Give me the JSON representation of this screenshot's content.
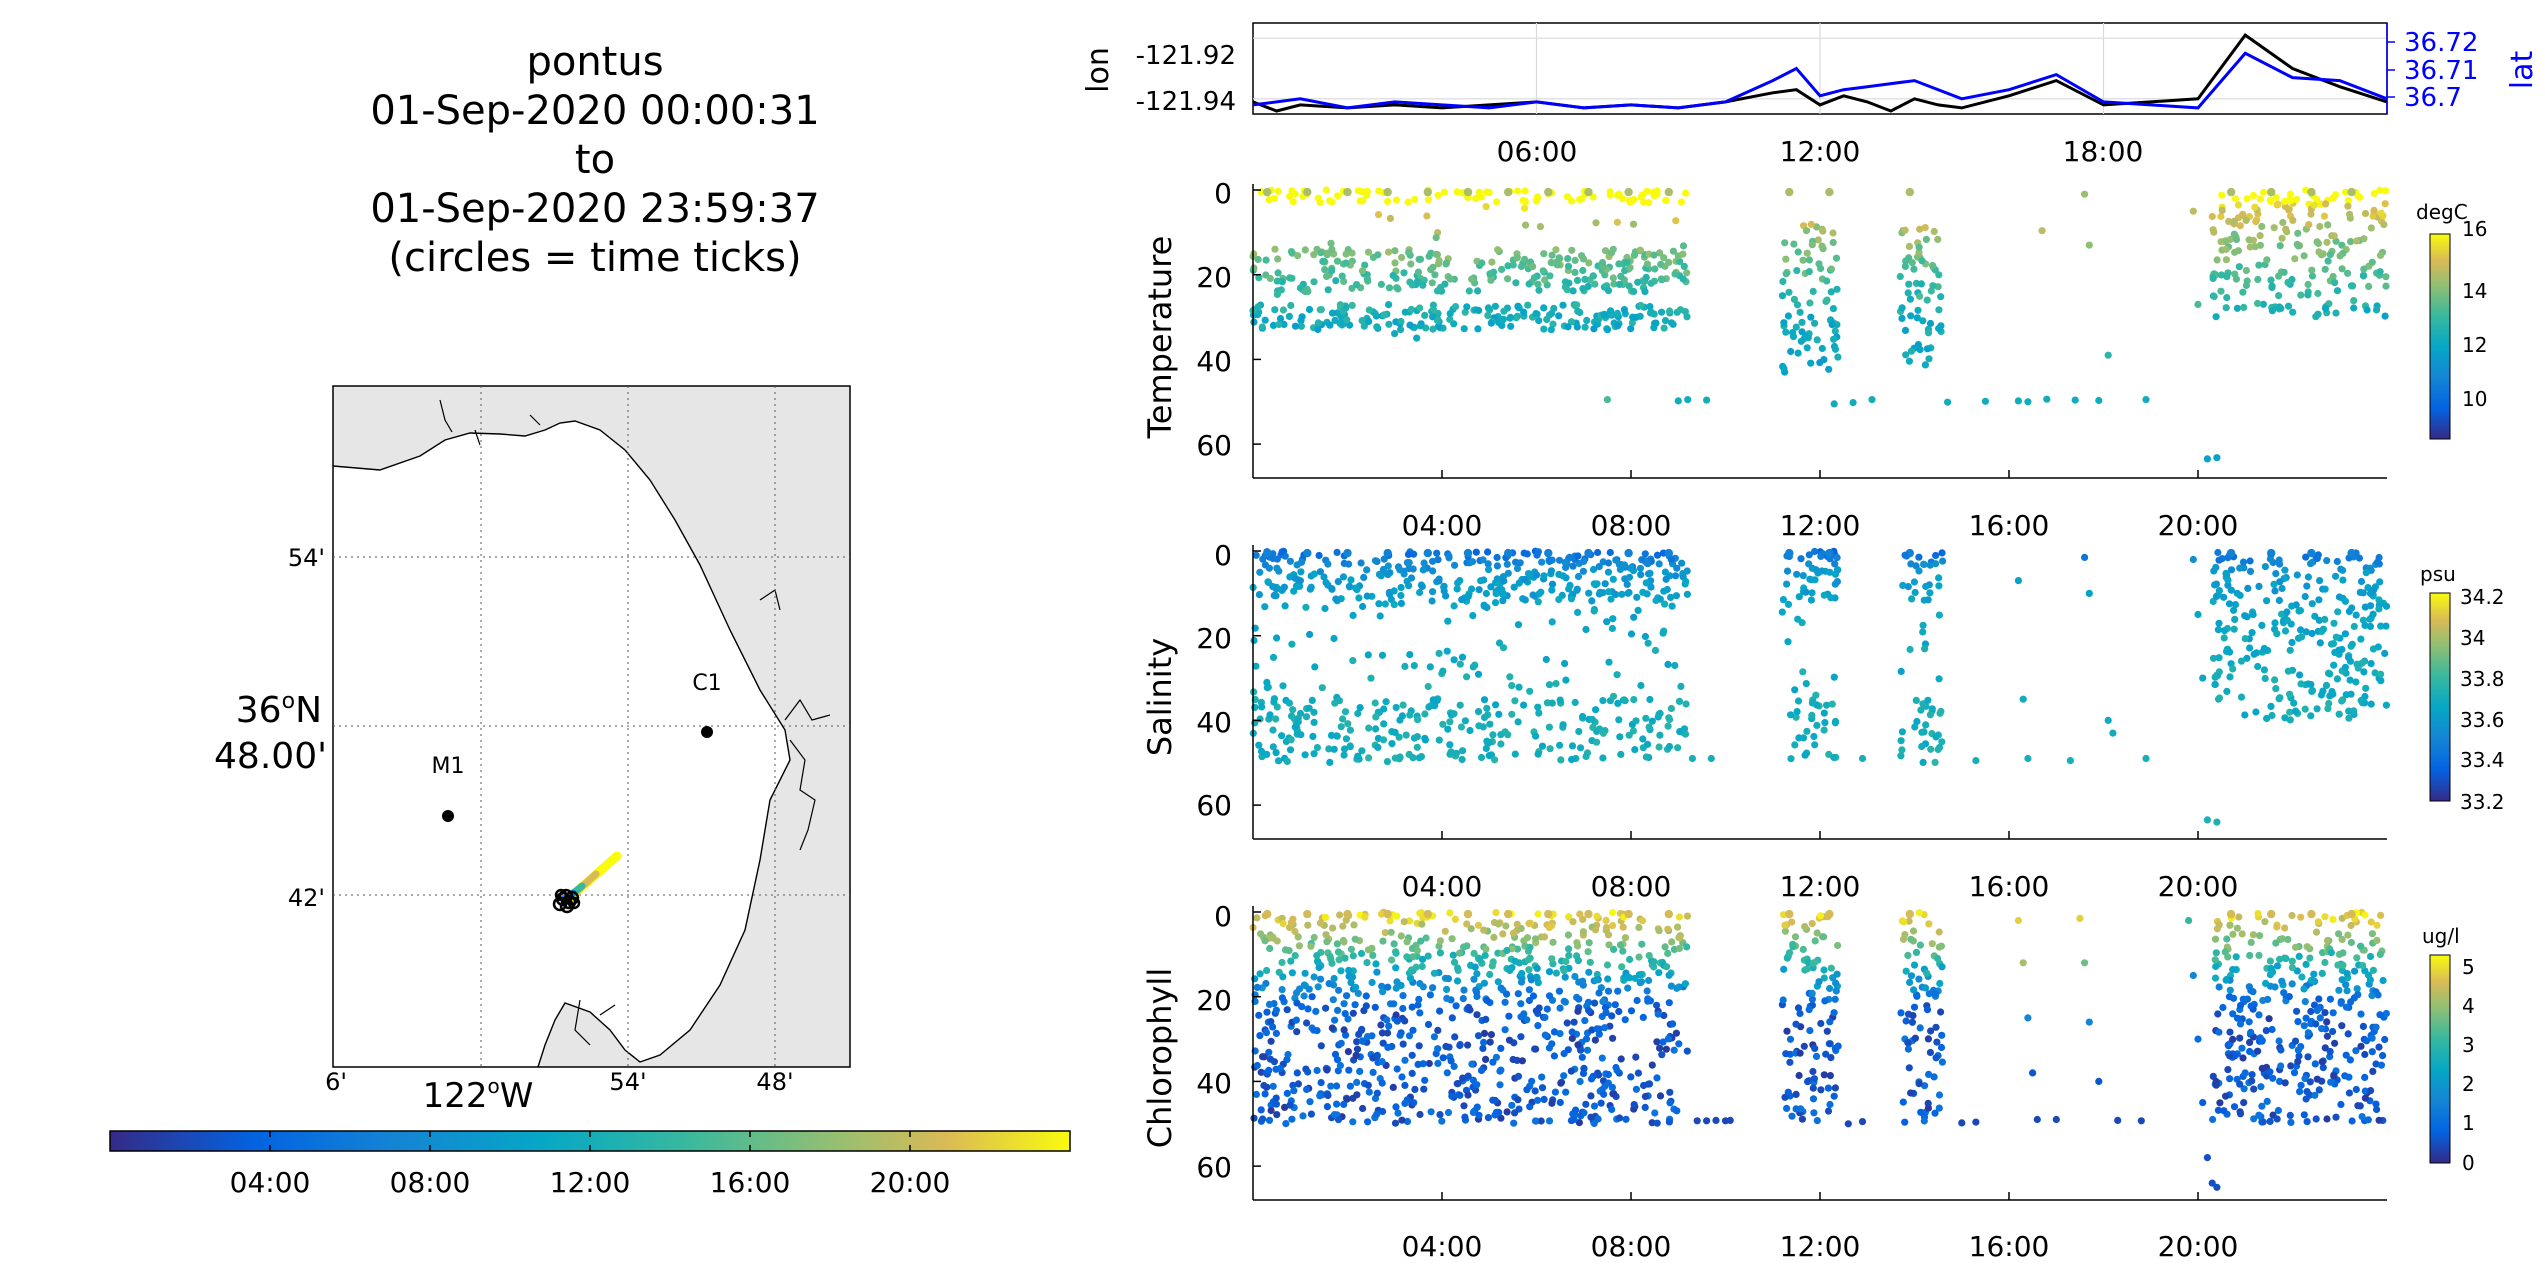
{
  "title": {
    "lines": [
      "pontus",
      "01-Sep-2020 00:00:31",
      "to",
      "01-Sep-2020 23:59:37",
      "(circles = time ticks)"
    ]
  },
  "map": {
    "lat_tick_labels": [
      "54'",
      "36°N 48.00'",
      "42'"
    ],
    "lon_tick_labels": [
      "6'",
      "122°W",
      "54'",
      "48'"
    ],
    "stations": [
      {
        "name": "M1",
        "lon": -122.0306,
        "lat": 36.7486
      },
      {
        "name": "C1",
        "lon": -121.8443,
        "lat": 36.7968
      }
    ],
    "vehicle_track": {
      "start": [
        -121.938,
        36.7
      ],
      "end": [
        -121.92,
        36.722
      ]
    },
    "land_color": "#e6e6e6",
    "coast_color": "#000000"
  },
  "time_colorbar": {
    "tick_labels": [
      "04:00",
      "08:00",
      "12:00",
      "16:00",
      "20:00"
    ],
    "colormap": "parula"
  },
  "chart_data": [
    {
      "type": "line",
      "name": "position",
      "x_tick_labels": [
        "06:00",
        "12:00",
        "18:00"
      ],
      "y_left_label": "lon",
      "y_left_ticks": [
        "-121.92",
        "-121.94"
      ],
      "y_right_label": "lat",
      "y_right_ticks": [
        "36.72",
        "36.71",
        "36.7"
      ],
      "ylim_left": [
        -121.945,
        -121.915
      ],
      "ylim_right": [
        36.695,
        36.725
      ],
      "xlim_hours": [
        0,
        24
      ],
      "grid": true,
      "series": [
        {
          "name": "lon",
          "color": "#000000",
          "x": [
            0,
            0.5,
            1,
            2,
            3,
            4,
            5,
            6,
            7,
            8,
            9,
            10,
            11,
            11.5,
            12,
            12.5,
            13,
            13.5,
            14,
            14.5,
            15,
            16,
            17,
            18,
            19,
            20,
            21,
            22,
            23,
            24
          ],
          "y": [
            -121.941,
            -121.944,
            -121.942,
            -121.943,
            -121.942,
            -121.943,
            -121.942,
            -121.941,
            -121.943,
            -121.942,
            -121.943,
            -121.941,
            -121.938,
            -121.937,
            -121.942,
            -121.939,
            -121.941,
            -121.944,
            -121.94,
            -121.942,
            -121.943,
            -121.939,
            -121.934,
            -121.942,
            -121.941,
            -121.94,
            -121.919,
            -121.93,
            -121.936,
            -121.941
          ]
        },
        {
          "name": "lat",
          "color": "#0000ff",
          "x": [
            0,
            1,
            2,
            3,
            4,
            5,
            6,
            7,
            8,
            9,
            10,
            11,
            11.5,
            12,
            12.5,
            13,
            14,
            15,
            16,
            17,
            18,
            19,
            20,
            21,
            22,
            23,
            24
          ],
          "y": [
            36.698,
            36.7,
            36.697,
            36.699,
            36.698,
            36.697,
            36.699,
            36.697,
            36.698,
            36.697,
            36.699,
            36.706,
            36.71,
            36.701,
            36.703,
            36.704,
            36.706,
            36.7,
            36.703,
            36.708,
            36.699,
            36.698,
            36.697,
            36.715,
            36.707,
            36.706,
            36.7
          ]
        }
      ]
    },
    {
      "type": "scatter",
      "name": "Temperature",
      "ylabel": "Temperature",
      "units": "degC",
      "ylim": [
        0,
        68
      ],
      "y_reversed": true,
      "xlim_hours": [
        0,
        24
      ],
      "x_tick_labels": [
        "04:00",
        "08:00",
        "12:00",
        "16:00",
        "20:00"
      ],
      "y_tick_labels": [
        "0",
        "20",
        "40",
        "60"
      ],
      "clim": [
        8.5,
        16
      ],
      "cbar_ticks": [
        "10",
        "12",
        "14",
        "16"
      ],
      "segments": [
        [
          0,
          9.2
        ],
        [
          11.2,
          12.4
        ],
        [
          13.7,
          14.6
        ],
        [
          20.3,
          24
        ]
      ],
      "profile": [
        [
          0,
          16
        ],
        [
          10,
          14
        ],
        [
          20,
          13
        ],
        [
          30,
          12
        ],
        [
          40,
          11.8
        ],
        [
          50,
          11.5
        ],
        [
          64,
          11.2
        ]
      ],
      "extra_points": [
        {
          "x": 7.5,
          "y": 49.5,
          "v": 13
        },
        {
          "x": 9.0,
          "y": 49.8,
          "v": 12
        },
        {
          "x": 9.2,
          "y": 49.5,
          "v": 12
        },
        {
          "x": 9.6,
          "y": 49.6,
          "v": 12
        },
        {
          "x": 12.3,
          "y": 50.5,
          "v": 12
        },
        {
          "x": 12.7,
          "y": 50.2,
          "v": 12
        },
        {
          "x": 13.1,
          "y": 49.5,
          "v": 12
        },
        {
          "x": 14.7,
          "y": 50.1,
          "v": 12
        },
        {
          "x": 15.5,
          "y": 49.9,
          "v": 12
        },
        {
          "x": 16.2,
          "y": 49.8,
          "v": 12
        },
        {
          "x": 16.4,
          "y": 50.0,
          "v": 12
        },
        {
          "x": 16.7,
          "y": 9.6,
          "v": 14.5
        },
        {
          "x": 16.8,
          "y": 49.4,
          "v": 12
        },
        {
          "x": 17.4,
          "y": 49.6,
          "v": 12
        },
        {
          "x": 17.6,
          "y": 1.0,
          "v": 14
        },
        {
          "x": 17.7,
          "y": 13.0,
          "v": 13.8
        },
        {
          "x": 17.9,
          "y": 49.7,
          "v": 12
        },
        {
          "x": 18.1,
          "y": 39.0,
          "v": 12.5
        },
        {
          "x": 18.9,
          "y": 49.5,
          "v": 12
        },
        {
          "x": 19.9,
          "y": 5.0,
          "v": 14.5
        },
        {
          "x": 20.0,
          "y": 27.0,
          "v": 13
        },
        {
          "x": 20.2,
          "y": 63.5,
          "v": 11.5
        },
        {
          "x": 20.4,
          "y": 63.2,
          "v": 11.5
        },
        {
          "x": 20.6,
          "y": 14.0,
          "v": 14
        },
        {
          "x": 13.8,
          "y": 9.5,
          "v": 14.5
        }
      ]
    },
    {
      "type": "scatter",
      "name": "Salinity",
      "ylabel": "Salinity",
      "units": "psu",
      "ylim": [
        0,
        68
      ],
      "y_reversed": true,
      "xlim_hours": [
        0,
        24
      ],
      "x_tick_labels": [
        "04:00",
        "08:00",
        "12:00",
        "16:00",
        "20:00"
      ],
      "y_tick_labels": [
        "0",
        "20",
        "40",
        "60"
      ],
      "clim": [
        33.15,
        34.25
      ],
      "cbar_ticks": [
        "33.2",
        "33.4",
        "33.6",
        "33.8",
        "34",
        "34.2"
      ],
      "segments": [
        [
          0,
          9.2
        ],
        [
          11.2,
          12.4
        ],
        [
          13.7,
          14.6
        ],
        [
          20.3,
          24
        ]
      ],
      "profile": [
        [
          0,
          33.35
        ],
        [
          5,
          33.55
        ],
        [
          15,
          33.62
        ],
        [
          30,
          33.66
        ],
        [
          50,
          33.68
        ],
        [
          64,
          33.7
        ]
      ],
      "extra_points": [
        {
          "x": 9.3,
          "y": 49.0,
          "v": 33.68
        },
        {
          "x": 9.7,
          "y": 49.0,
          "v": 33.68
        },
        {
          "x": 12.9,
          "y": 49.0,
          "v": 33.68
        },
        {
          "x": 15.3,
          "y": 49.5,
          "v": 33.68
        },
        {
          "x": 16.2,
          "y": 7.0,
          "v": 33.6
        },
        {
          "x": 16.3,
          "y": 35.0,
          "v": 33.66
        },
        {
          "x": 16.4,
          "y": 49.0,
          "v": 33.68
        },
        {
          "x": 17.3,
          "y": 49.5,
          "v": 33.68
        },
        {
          "x": 17.6,
          "y": 1.5,
          "v": 33.4
        },
        {
          "x": 17.7,
          "y": 10.0,
          "v": 33.6
        },
        {
          "x": 18.1,
          "y": 40.0,
          "v": 33.66
        },
        {
          "x": 18.2,
          "y": 43.0,
          "v": 33.66
        },
        {
          "x": 18.9,
          "y": 49.0,
          "v": 33.68
        },
        {
          "x": 19.9,
          "y": 2.0,
          "v": 33.5
        },
        {
          "x": 20.0,
          "y": 15.0,
          "v": 33.62
        },
        {
          "x": 20.1,
          "y": 30.0,
          "v": 33.64
        },
        {
          "x": 20.2,
          "y": 63.5,
          "v": 33.7
        },
        {
          "x": 20.4,
          "y": 64.0,
          "v": 33.7
        },
        {
          "x": 13.8,
          "y": 1.0,
          "v": 33.4
        }
      ]
    },
    {
      "type": "scatter",
      "name": "Chlorophyll",
      "ylabel": "Chlorophyll",
      "units": "ug/l",
      "ylim": [
        0,
        68
      ],
      "y_reversed": true,
      "xlim_hours": [
        0,
        24
      ],
      "x_tick_labels": [
        "04:00",
        "08:00",
        "12:00",
        "16:00",
        "20:00"
      ],
      "y_tick_labels": [
        "0",
        "20",
        "40",
        "60"
      ],
      "clim": [
        0,
        5.3
      ],
      "cbar_ticks": [
        "0",
        "1",
        "2",
        "3",
        "4",
        "5"
      ],
      "segments": [
        [
          0,
          9.2
        ],
        [
          11.2,
          12.4
        ],
        [
          13.7,
          14.6
        ],
        [
          20.3,
          24
        ]
      ],
      "profile": [
        [
          0,
          5.0
        ],
        [
          5,
          4.0
        ],
        [
          10,
          3.0
        ],
        [
          15,
          2.2
        ],
        [
          20,
          1.2
        ],
        [
          25,
          0.6
        ],
        [
          35,
          0.4
        ],
        [
          50,
          0.3
        ],
        [
          64,
          0.3
        ]
      ],
      "extra_points": [
        {
          "x": 9.4,
          "y": 49.3,
          "v": 0.4
        },
        {
          "x": 9.6,
          "y": 49.3,
          "v": 0.4
        },
        {
          "x": 9.8,
          "y": 49.2,
          "v": 0.4
        },
        {
          "x": 10.0,
          "y": 49.3,
          "v": 0.4
        },
        {
          "x": 10.1,
          "y": 49.2,
          "v": 0.4
        },
        {
          "x": 12.6,
          "y": 50.0,
          "v": 0.4
        },
        {
          "x": 12.9,
          "y": 49.5,
          "v": 0.4
        },
        {
          "x": 15.0,
          "y": 49.8,
          "v": 0.4
        },
        {
          "x": 15.3,
          "y": 49.6,
          "v": 0.4
        },
        {
          "x": 16.2,
          "y": 2.0,
          "v": 4.8
        },
        {
          "x": 16.3,
          "y": 12.0,
          "v": 4.0
        },
        {
          "x": 16.4,
          "y": 25.0,
          "v": 1.5
        },
        {
          "x": 16.5,
          "y": 38.0,
          "v": 0.6
        },
        {
          "x": 16.6,
          "y": 49.0,
          "v": 0.4
        },
        {
          "x": 17.0,
          "y": 49.0,
          "v": 0.4
        },
        {
          "x": 17.5,
          "y": 1.5,
          "v": 4.8
        },
        {
          "x": 17.6,
          "y": 12.0,
          "v": 3.5
        },
        {
          "x": 17.7,
          "y": 26.0,
          "v": 1.5
        },
        {
          "x": 17.9,
          "y": 40.0,
          "v": 0.6
        },
        {
          "x": 18.3,
          "y": 49.2,
          "v": 0.4
        },
        {
          "x": 18.8,
          "y": 49.3,
          "v": 0.4
        },
        {
          "x": 19.8,
          "y": 2.0,
          "v": 3.0
        },
        {
          "x": 19.9,
          "y": 15.0,
          "v": 1.5
        },
        {
          "x": 20.0,
          "y": 30.0,
          "v": 1.0
        },
        {
          "x": 20.1,
          "y": 45.0,
          "v": 0.7
        },
        {
          "x": 20.2,
          "y": 58.0,
          "v": 0.5
        },
        {
          "x": 20.3,
          "y": 64.0,
          "v": 0.5
        },
        {
          "x": 20.4,
          "y": 65.0,
          "v": 0.5
        }
      ]
    }
  ]
}
